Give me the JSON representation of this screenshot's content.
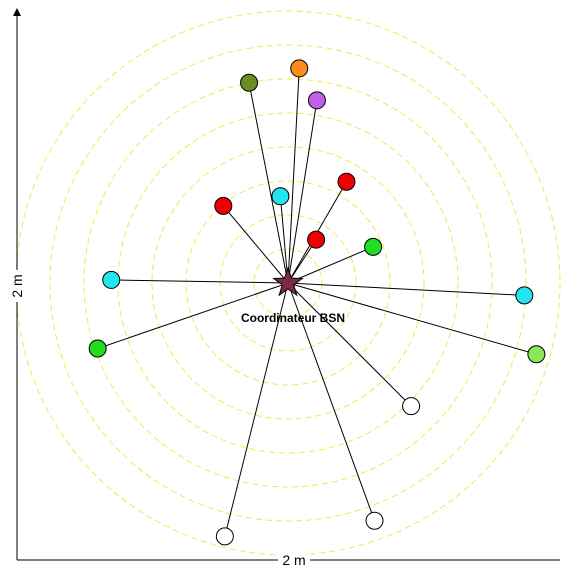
{
  "axes": {
    "x_label": "2 m",
    "y_label": "2 m"
  },
  "coordinator": {
    "label": "Coordinateur BSN",
    "color": "#7b2a4a"
  },
  "ring_color": "#f2e84a",
  "ring_count": 8,
  "nodes": [
    {
      "name": "node-olive",
      "color": "#6b8e23",
      "angle_deg": 101,
      "distance_rel": 0.75
    },
    {
      "name": "node-orange",
      "color": "#ff8c1a",
      "angle_deg": 87,
      "distance_rel": 0.79
    },
    {
      "name": "node-purple",
      "color": "#c060e8",
      "angle_deg": 81,
      "distance_rel": 0.68
    },
    {
      "name": "node-cyan-top",
      "color": "#22e5f0",
      "angle_deg": 95,
      "distance_rel": 0.32
    },
    {
      "name": "node-red-top-right",
      "color": "#ee0000",
      "angle_deg": 60,
      "distance_rel": 0.43
    },
    {
      "name": "node-red-left",
      "color": "#ee0000",
      "angle_deg": 130,
      "distance_rel": 0.37
    },
    {
      "name": "node-red-center",
      "color": "#ee0000",
      "angle_deg": 57,
      "distance_rel": 0.19
    },
    {
      "name": "node-green-right",
      "color": "#22dd22",
      "angle_deg": 23,
      "distance_rel": 0.34
    },
    {
      "name": "node-cyan-left",
      "color": "#22e5f0",
      "angle_deg": 179,
      "distance_rel": 0.65
    },
    {
      "name": "node-green-left",
      "color": "#22dd22",
      "angle_deg": 199,
      "distance_rel": 0.74
    },
    {
      "name": "node-cyan-right",
      "color": "#22e5f0",
      "angle_deg": 357,
      "distance_rel": 0.87
    },
    {
      "name": "node-lightgreen-right",
      "color": "#88e855",
      "angle_deg": 344,
      "distance_rel": 0.95
    },
    {
      "name": "node-white-right",
      "color": "#ffffff",
      "angle_deg": 315,
      "distance_rel": 0.64
    },
    {
      "name": "node-white-bottom-right",
      "color": "#ffffff",
      "angle_deg": 290,
      "distance_rel": 0.93
    },
    {
      "name": "node-white-bottom-left",
      "color": "#ffffff",
      "angle_deg": 256,
      "distance_rel": 0.96
    }
  ]
}
